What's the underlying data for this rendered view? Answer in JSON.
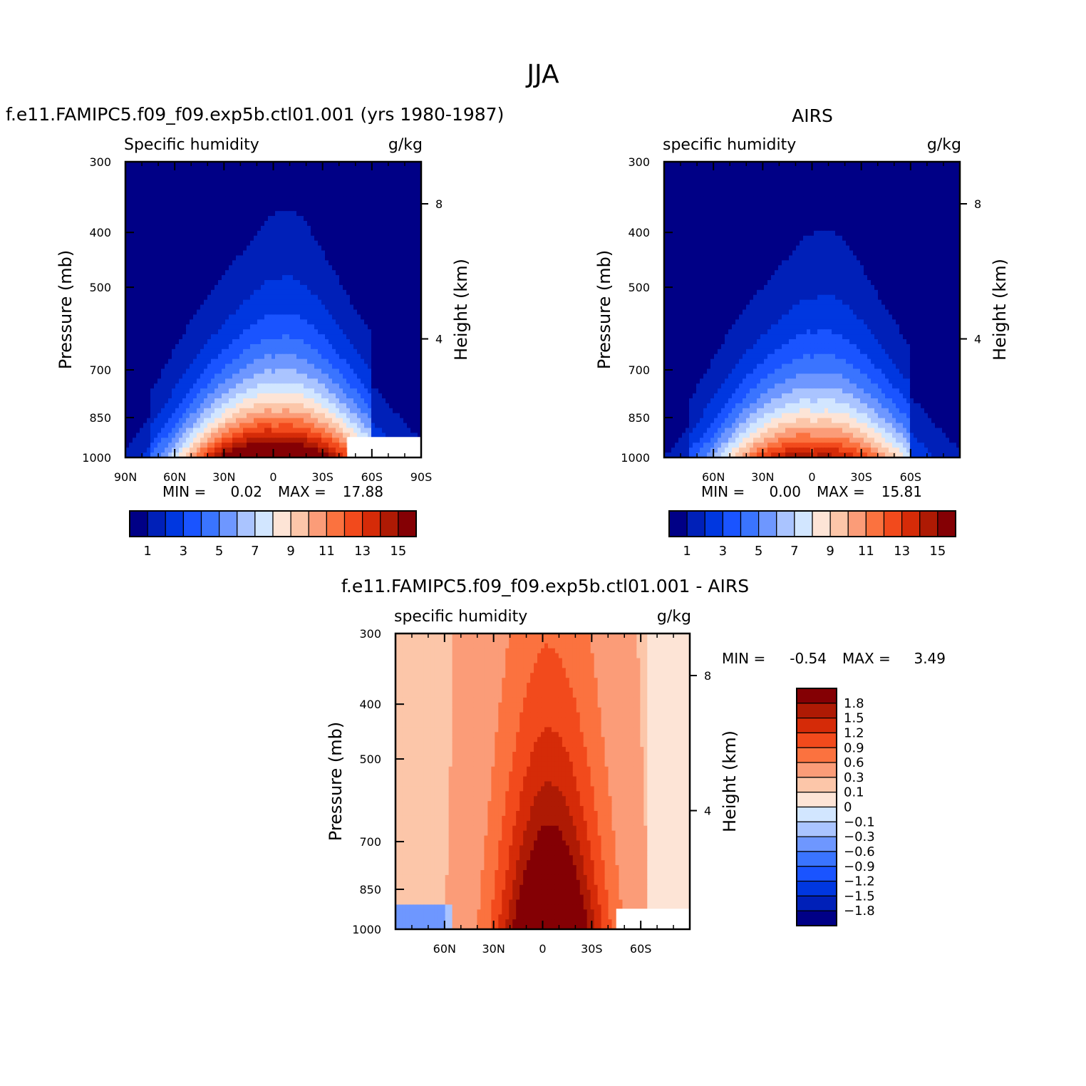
{
  "figure_title": "JJA",
  "colors": {
    "abs_palette": [
      "#000086",
      "#0020b8",
      "#0037e0",
      "#1a54ff",
      "#3a74ff",
      "#6e97ff",
      "#aac4ff",
      "#d2e6ff",
      "#fde4d6",
      "#fcc6a9",
      "#fb9c78",
      "#fb723f",
      "#f24a1c",
      "#d52b08",
      "#ae1a04",
      "#840004"
    ],
    "diff_palette": [
      "#000086",
      "#0020b8",
      "#0037e0",
      "#1a54ff",
      "#3a74ff",
      "#6e97ff",
      "#aac4ff",
      "#d2e6ff",
      "#fde4d6",
      "#fcc6a9",
      "#fb9c78",
      "#fb723f",
      "#f24a1c",
      "#d52b08",
      "#ae1a04",
      "#840004"
    ]
  },
  "chart_data": [
    {
      "id": "model",
      "type": "heatmap",
      "title": "f.e11.FAMIPC5.f09_f09.exp5b.ctl01.001 (yrs 1980-1987)",
      "left_label": "Specific humidity",
      "right_label": "g/kg",
      "ylabel": "Pressure (mb)",
      "y2label": "Height (km)",
      "yticks": [
        300,
        400,
        500,
        700,
        850,
        1000
      ],
      "y2ticks": [
        "8",
        "4"
      ],
      "xticks": [
        "90N",
        "60N",
        "30N",
        "0",
        "30S",
        "60S",
        "90S"
      ],
      "xlim": [
        90,
        -90
      ],
      "ylim": [
        1000,
        300
      ],
      "stats": {
        "min_label": "MIN =",
        "min": "0.02",
        "max_label": "MAX =",
        "max": "17.88"
      },
      "colorbar_labels": [
        "1",
        "3",
        "5",
        "7",
        "9",
        "11",
        "13",
        "15"
      ],
      "levels": [
        1,
        2,
        3,
        4,
        5,
        6,
        7,
        8,
        9,
        10,
        11,
        12,
        13,
        14,
        15
      ],
      "field": {
        "peak_lat": -8,
        "peak_value": 17.88,
        "sfc_boundary_lat": [
          -45,
          -90
        ],
        "sfc_boundary_top_mb": 920
      }
    },
    {
      "id": "obs",
      "type": "heatmap",
      "title": "AIRS",
      "left_label": "specific humidity",
      "right_label": "g/kg",
      "ylabel": "Pressure (mb)",
      "y2label": "Height (km)",
      "yticks": [
        300,
        400,
        500,
        700,
        850,
        1000
      ],
      "y2ticks": [
        "8",
        "4"
      ],
      "xticks": [
        "60N",
        "30N",
        "0",
        "30S",
        "60S"
      ],
      "xlim": [
        90,
        -90
      ],
      "ylim": [
        1000,
        300
      ],
      "stats": {
        "min_label": "MIN =",
        "min": "0.00",
        "max_label": "MAX =",
        "max": "15.81"
      },
      "colorbar_labels": [
        "1",
        "3",
        "5",
        "7",
        "9",
        "11",
        "13",
        "15"
      ],
      "levels": [
        1,
        2,
        3,
        4,
        5,
        6,
        7,
        8,
        9,
        10,
        11,
        12,
        13,
        14,
        15
      ],
      "field": {
        "peak_lat": -8,
        "peak_value": 15.81
      }
    },
    {
      "id": "diff",
      "type": "heatmap",
      "title": "f.e11.FAMIPC5.f09_f09.exp5b.ctl01.001 - AIRS",
      "left_label": "specific humidity",
      "right_label": "g/kg",
      "ylabel": "Pressure (mb)",
      "y2label": "Height (km)",
      "yticks": [
        300,
        400,
        500,
        700,
        850,
        1000
      ],
      "y2ticks": [
        "8",
        "4"
      ],
      "xticks": [
        "60N",
        "30N",
        "0",
        "30S",
        "60S"
      ],
      "xlim": [
        90,
        -90
      ],
      "ylim": [
        1000,
        300
      ],
      "stats": {
        "min_label": "MIN =",
        "min": "-0.54",
        "max_label": "MAX =",
        "max": "3.49"
      },
      "colorbar_labels": [
        "1.8",
        "1.5",
        "1.2",
        "0.9",
        "0.6",
        "0.3",
        "0.1",
        "0",
        "-0.1",
        "-0.3",
        "-0.6",
        "-0.9",
        "-1.2",
        "-1.5",
        "-1.8"
      ],
      "levels": [
        -1.8,
        -1.5,
        -1.2,
        -0.9,
        -0.6,
        -0.3,
        -0.1,
        0,
        0.1,
        0.3,
        0.6,
        0.9,
        1.2,
        1.5,
        1.8
      ],
      "field": {
        "peak_lat": -8,
        "peak_value": 3.49,
        "min_value": -0.54
      }
    }
  ]
}
